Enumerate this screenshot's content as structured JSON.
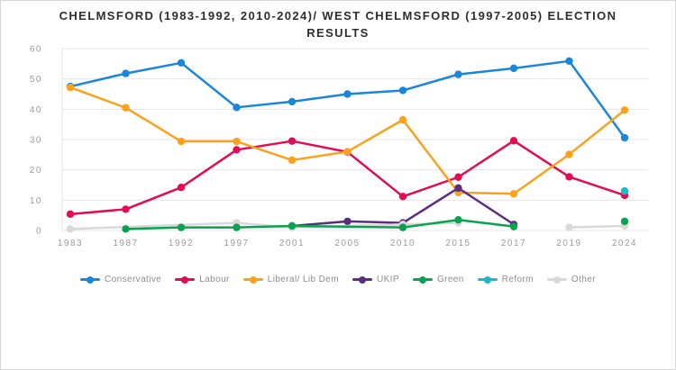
{
  "frame": {
    "background": "#ffffff",
    "border_color": "#d6d6d6"
  },
  "chart_data": {
    "type": "line",
    "title_line1": "CHELMSFORD (1983-1992, 2010-2024)/ WEST CHELMSFORD (1997-2005) ELECTION",
    "title_line2": "RESULTS",
    "categories": [
      "1983",
      "1987",
      "1992",
      "1997",
      "2001",
      "2005",
      "2010",
      "2015",
      "2017",
      "2019",
      "2024"
    ],
    "ylim": [
      0,
      60
    ],
    "y_ticks": [
      0,
      10,
      20,
      30,
      40,
      50,
      60
    ],
    "grid": true,
    "legend_position": "bottom",
    "text_colors": {
      "title": "#2e2e2e",
      "ticks": "#9b9b9b",
      "legend": "#8c8c8c"
    },
    "series": [
      {
        "name": "Conservative",
        "color": "#1a86d9",
        "points": [
          [
            "1983",
            47.5
          ],
          [
            "1987",
            51.8
          ],
          [
            "1992",
            55.3
          ],
          [
            "1997",
            40.6
          ],
          [
            "2001",
            42.5
          ],
          [
            "2005",
            45.0
          ],
          [
            "2010",
            46.2
          ],
          [
            "2015",
            51.5
          ],
          [
            "2017",
            53.5
          ],
          [
            "2019",
            55.9
          ],
          [
            "2024",
            30.6
          ]
        ],
        "gaps": []
      },
      {
        "name": "Labour",
        "color": "#e30b54",
        "points": [
          [
            "1983",
            5.4
          ],
          [
            "1987",
            7.0
          ],
          [
            "1992",
            14.2
          ],
          [
            "1997",
            26.6
          ],
          [
            "2001",
            29.5
          ],
          [
            "2005",
            25.9
          ],
          [
            "2010",
            11.2
          ],
          [
            "2015",
            17.6
          ],
          [
            "2017",
            29.6
          ],
          [
            "2019",
            17.7
          ],
          [
            "2024",
            11.6
          ]
        ],
        "gaps": []
      },
      {
        "name": "Liberal/ Lib Dem",
        "color": "#f9a21d",
        "points": [
          [
            "1983",
            47.2
          ],
          [
            "1987",
            40.5
          ],
          [
            "1992",
            29.4
          ],
          [
            "1997",
            29.4
          ],
          [
            "2001",
            23.2
          ],
          [
            "2005",
            26.0
          ],
          [
            "2010",
            36.5
          ],
          [
            "2015",
            12.5
          ],
          [
            "2017",
            12.1
          ],
          [
            "2019",
            25.1
          ],
          [
            "2024",
            39.7
          ]
        ],
        "gaps": []
      },
      {
        "name": "UKIP",
        "color": "#5c2d80",
        "points": [
          [
            "2001",
            1.5
          ],
          [
            "2005",
            3.0
          ],
          [
            "2010",
            2.5
          ],
          [
            "2015",
            14.0
          ],
          [
            "2017",
            2.0
          ]
        ],
        "gaps": []
      },
      {
        "name": "Green",
        "color": "#09a350",
        "points": [
          [
            "1987",
            0.5
          ],
          [
            "1992",
            1.0
          ],
          [
            "1997",
            1.0
          ],
          [
            "2001",
            1.5
          ],
          [
            "2010",
            1.0
          ],
          [
            "2015",
            3.5
          ],
          [
            "2017",
            1.3
          ],
          [
            "2024",
            3.0
          ]
        ],
        "gaps": [
          [
            "2017",
            "2024"
          ]
        ]
      },
      {
        "name": "Reform",
        "color": "#1cb8cc",
        "points": [
          [
            "2024",
            13.0
          ]
        ],
        "gaps": []
      },
      {
        "name": "Other",
        "color": "#d9d9d9",
        "points": [
          [
            "1983",
            0.5
          ],
          [
            "1997",
            2.5
          ],
          [
            "2001",
            1.0
          ],
          [
            "2010",
            2.0
          ],
          [
            "2015",
            2.5
          ],
          [
            "2019",
            1.0
          ],
          [
            "2024",
            1.5
          ]
        ],
        "gaps": [
          [
            "2015",
            "2019"
          ]
        ]
      }
    ]
  }
}
